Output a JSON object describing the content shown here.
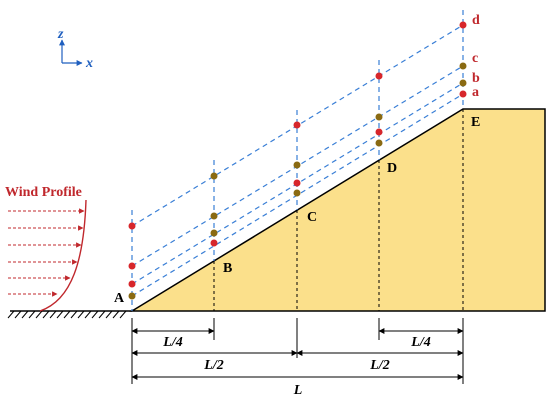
{
  "axes": {
    "z": "z",
    "x": "x",
    "color": "#1f5fbf"
  },
  "wind": {
    "label": "Wind Profile",
    "color": "#c0282d"
  },
  "points": {
    "A": "A",
    "B": "B",
    "C": "C",
    "D": "D",
    "E": "E"
  },
  "heights": [
    "a",
    "b",
    "c",
    "d"
  ],
  "dims": {
    "quarter": "L/4",
    "half": "L/2",
    "full": "L"
  },
  "colors": {
    "hill_fill": "#fbe08b",
    "dash": "#3a7fd6",
    "sensor_red": "#d7262b",
    "sensor_brown": "#8a6a12"
  }
}
